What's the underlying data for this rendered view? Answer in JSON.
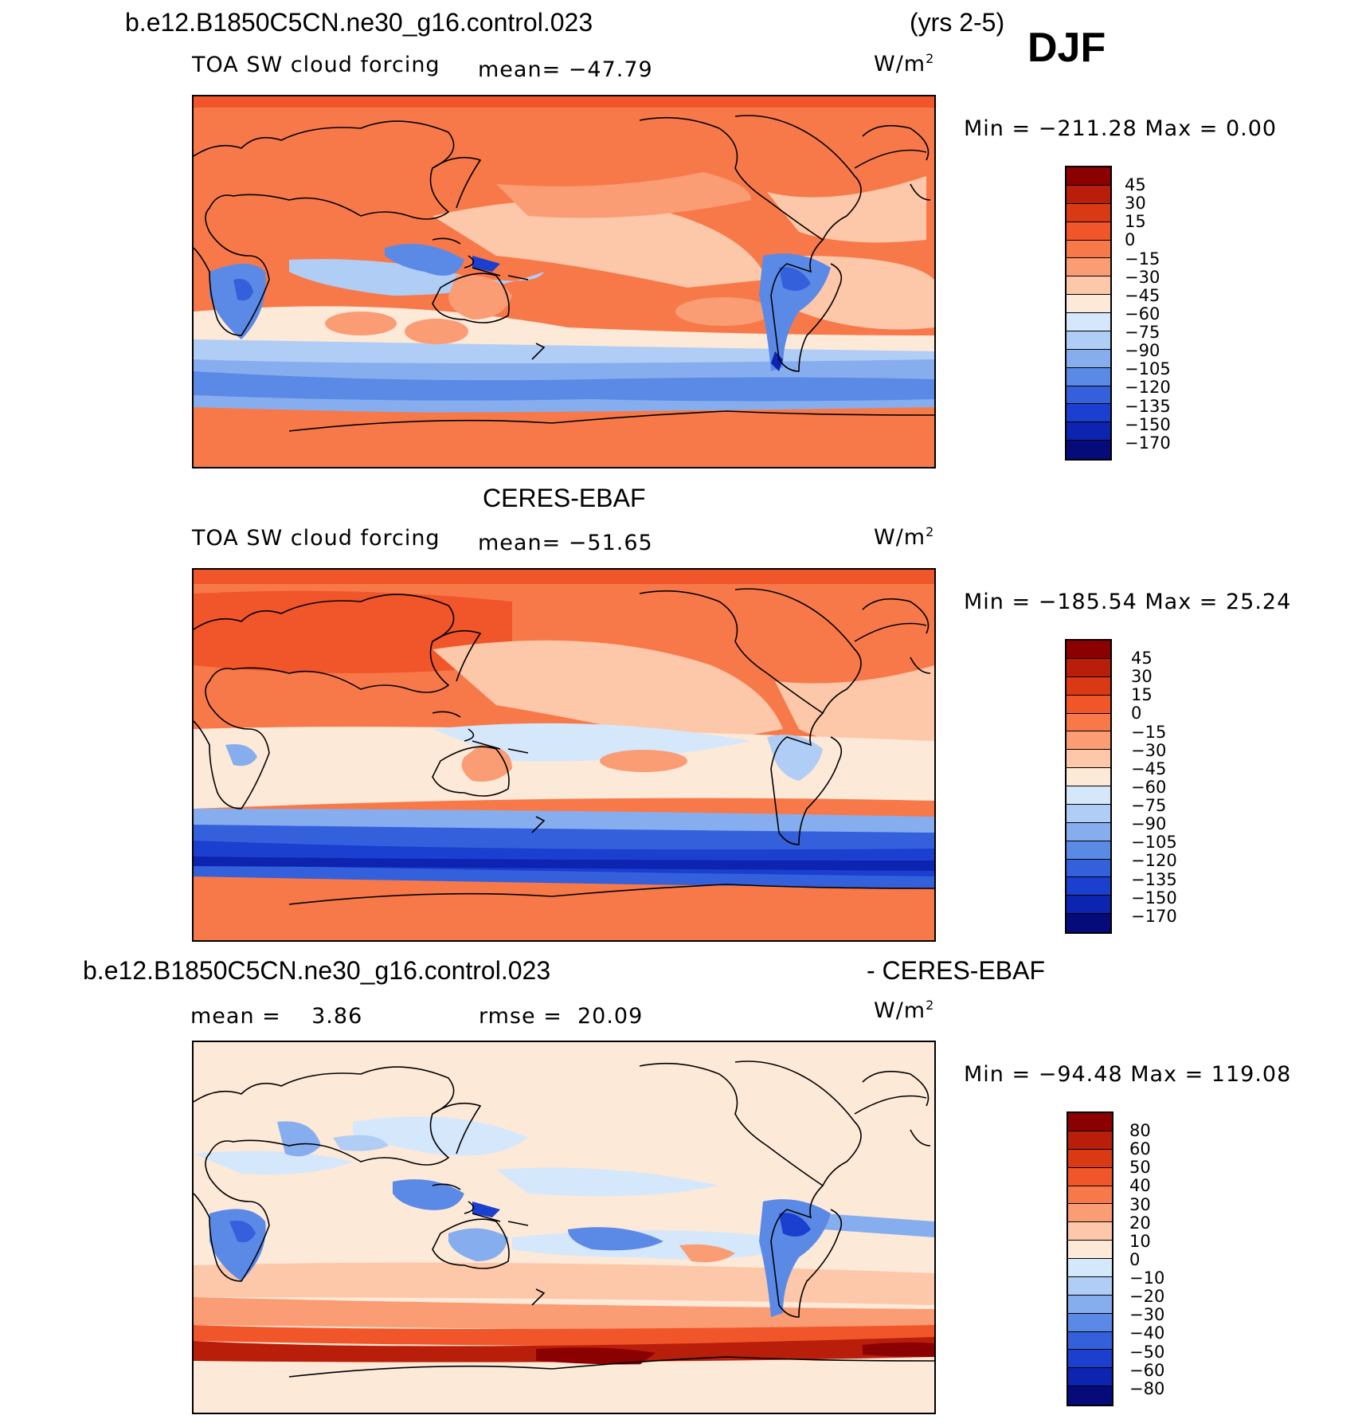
{
  "header": {
    "case_name": "b.e12.B1850C5CN.ne30_g16.control.023",
    "years": "(yrs 2-5)",
    "season": "DJF"
  },
  "panels": [
    {
      "id": "model",
      "title": "",
      "variable": "TOA SW cloud forcing",
      "stat_label": "mean=",
      "stat_value": "−47.79",
      "units_base": "W/m",
      "units_exp": "2",
      "minmax": "Min = −211.28 Max =   0.00",
      "colorbar": {
        "ticks": [
          "45",
          "30",
          "15",
          "0",
          "−15",
          "−30",
          "−45",
          "−60",
          "−75",
          "−90",
          "−105",
          "−120",
          "−135",
          "−150",
          "−170"
        ],
        "colors": [
          "#8b0000",
          "#b81e0a",
          "#d93a14",
          "#f0562a",
          "#f7794a",
          "#fa9c74",
          "#fdc7aa",
          "#fde9d8",
          "#d5e7fb",
          "#b0cdf5",
          "#86aeee",
          "#5b8ae6",
          "#3560dc",
          "#1b3fcf",
          "#0d24b0",
          "#060b7a"
        ]
      }
    },
    {
      "id": "obs",
      "title": "CERES-EBAF",
      "variable": "TOA SW cloud forcing",
      "stat_label": "mean=",
      "stat_value": "−51.65",
      "units_base": "W/m",
      "units_exp": "2",
      "minmax": "Min = −185.54 Max =  25.24",
      "colorbar": {
        "ticks": [
          "45",
          "30",
          "15",
          "0",
          "−15",
          "−30",
          "−45",
          "−60",
          "−75",
          "−90",
          "−105",
          "−120",
          "−135",
          "−150",
          "−170"
        ],
        "colors": [
          "#8b0000",
          "#b81e0a",
          "#d93a14",
          "#f0562a",
          "#f7794a",
          "#fa9c74",
          "#fdc7aa",
          "#fde9d8",
          "#d5e7fb",
          "#b0cdf5",
          "#86aeee",
          "#5b8ae6",
          "#3560dc",
          "#1b3fcf",
          "#0d24b0",
          "#060b7a"
        ]
      }
    },
    {
      "id": "diff",
      "title_left": "b.e12.B1850C5CN.ne30_g16.control.023",
      "title_right": "- CERES-EBAF",
      "mean_label": "mean =",
      "mean_value": "3.86",
      "rmse_label": "rmse =",
      "rmse_value": "20.09",
      "units_base": "W/m",
      "units_exp": "2",
      "minmax": "Min = −94.48 Max = 119.08",
      "colorbar": {
        "ticks": [
          "80",
          "60",
          "50",
          "40",
          "30",
          "20",
          "10",
          "0",
          "−10",
          "−20",
          "−30",
          "−40",
          "−50",
          "−60",
          "−80"
        ],
        "colors": [
          "#8b0000",
          "#b81e0a",
          "#d93a14",
          "#f0562a",
          "#f7794a",
          "#fa9c74",
          "#fdc7aa",
          "#fde9d8",
          "#d5e7fb",
          "#b0cdf5",
          "#86aeee",
          "#5b8ae6",
          "#3560dc",
          "#1b3fcf",
          "#0d24b0",
          "#060b7a"
        ]
      }
    }
  ]
}
